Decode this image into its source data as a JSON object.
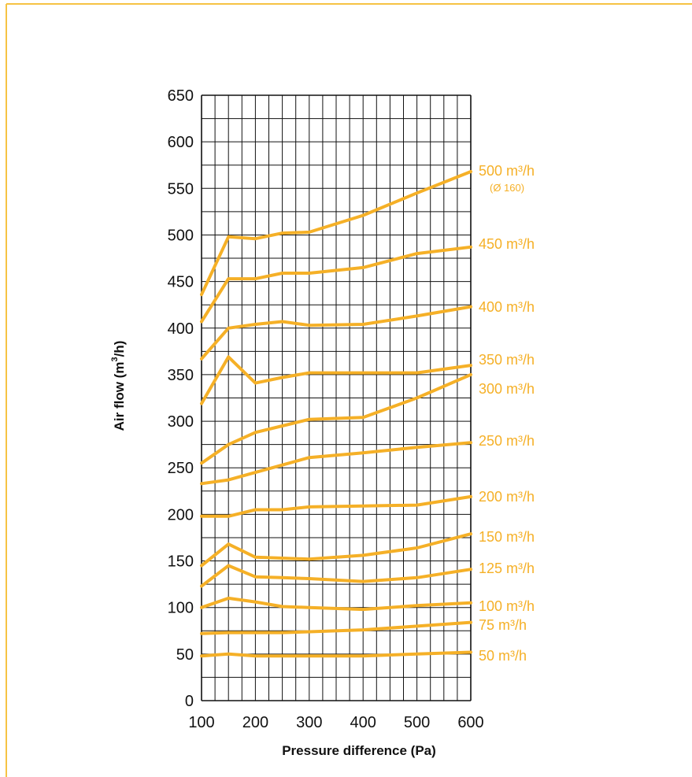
{
  "colors": {
    "accent": "#f5b027",
    "frame": "#f6c344",
    "grid": "#111111",
    "text": "#111111"
  },
  "chart_data": {
    "type": "line",
    "title": "",
    "xlabel": "Pressure difference (Pa)",
    "ylabel": "Air flow (m³/h)",
    "ylabel_main": "Air flow (m",
    "ylabel_sup": "3",
    "ylabel_tail": "/h)",
    "xlim": [
      100,
      600
    ],
    "ylim": [
      0,
      650
    ],
    "x_ticks": [
      "100",
      "200",
      "300",
      "400",
      "500",
      "600"
    ],
    "y_ticks": [
      "0",
      "50",
      "100",
      "150",
      "200",
      "250",
      "300",
      "350",
      "400",
      "450",
      "500",
      "550",
      "600",
      "650"
    ],
    "grid": true,
    "x_grid_step": 25,
    "y_grid_step": 25,
    "legend": "series labels at right end of lines",
    "series": [
      {
        "name": "50 m³/h",
        "x": [
          100,
          150,
          200,
          250,
          300,
          400,
          500,
          600
        ],
        "values": [
          48,
          50,
          48,
          48,
          48,
          48,
          50,
          52
        ]
      },
      {
        "name": "75 m³/h",
        "x": [
          100,
          150,
          200,
          250,
          300,
          400,
          500,
          600
        ],
        "values": [
          72,
          73,
          73,
          73,
          74,
          76,
          80,
          84
        ]
      },
      {
        "name": "100 m³/h",
        "x": [
          100,
          150,
          200,
          250,
          300,
          400,
          500,
          600
        ],
        "values": [
          100,
          110,
          106,
          101,
          100,
          98,
          102,
          105
        ]
      },
      {
        "name": "125 m³/h",
        "x": [
          100,
          150,
          200,
          250,
          300,
          400,
          500,
          600
        ],
        "values": [
          123,
          145,
          133,
          132,
          131,
          128,
          132,
          141
        ]
      },
      {
        "name": "150 m³/h",
        "x": [
          100,
          150,
          200,
          250,
          300,
          400,
          500,
          600
        ],
        "values": [
          145,
          168,
          154,
          153,
          152,
          156,
          164,
          179
        ]
      },
      {
        "name": "200 m³/h",
        "x": [
          100,
          150,
          200,
          250,
          300,
          400,
          500,
          600
        ],
        "values": [
          198,
          198,
          205,
          205,
          208,
          209,
          210,
          219
        ]
      },
      {
        "name": "250 m³/h",
        "x": [
          100,
          150,
          200,
          250,
          300,
          400,
          500,
          600
        ],
        "values": [
          233,
          237,
          245,
          253,
          261,
          266,
          272,
          277
        ]
      },
      {
        "name": "300 m³/h",
        "x": [
          100,
          150,
          200,
          250,
          300,
          400,
          500,
          600
        ],
        "values": [
          255,
          275,
          288,
          295,
          302,
          304,
          325,
          350
        ]
      },
      {
        "name": "350 m³/h",
        "x": [
          100,
          150,
          200,
          250,
          300,
          400,
          500,
          600
        ],
        "values": [
          319,
          369,
          341,
          347,
          352,
          352,
          352,
          360
        ]
      },
      {
        "name": "400 m³/h",
        "x": [
          100,
          150,
          200,
          250,
          300,
          400,
          500,
          600
        ],
        "values": [
          367,
          400,
          404,
          407,
          403,
          404,
          413,
          423
        ]
      },
      {
        "name": "450 m³/h",
        "x": [
          100,
          150,
          200,
          250,
          300,
          400,
          500,
          600
        ],
        "values": [
          407,
          453,
          453,
          459,
          459,
          465,
          480,
          487
        ]
      },
      {
        "name": "500 m³/h",
        "sublabel": "(Ø 160)",
        "x": [
          100,
          150,
          200,
          250,
          300,
          400,
          500,
          600
        ],
        "values": [
          436,
          498,
          496,
          502,
          503,
          521,
          545,
          568
        ]
      }
    ]
  }
}
